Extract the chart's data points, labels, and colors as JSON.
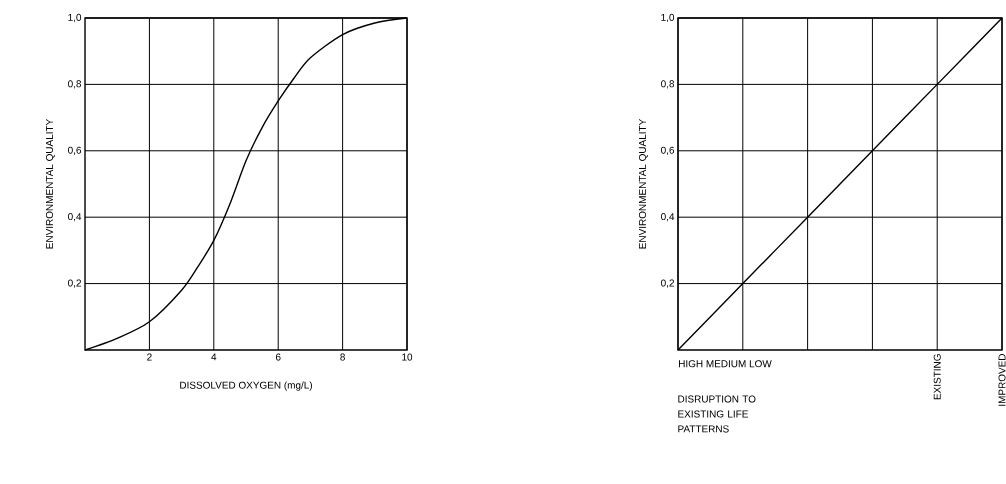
{
  "chart_data": [
    {
      "type": "line",
      "xlabel": "DISSOLVED OXYGEN (mg/L)",
      "ylabel": "ENVIRONMENTAL QUALITY",
      "color": "#000000",
      "x": [
        0,
        1,
        2,
        3,
        3.5,
        4,
        4.5,
        5,
        5.5,
        6,
        6.5,
        7,
        8,
        9,
        10
      ],
      "values": [
        0,
        0.035,
        0.085,
        0.18,
        0.25,
        0.33,
        0.44,
        0.57,
        0.67,
        0.75,
        0.82,
        0.88,
        0.95,
        0.985,
        1.0
      ],
      "xlim": [
        0,
        10
      ],
      "ylim": [
        0,
        1
      ],
      "xticks": [
        2,
        4,
        6,
        8,
        10
      ],
      "yticks": [
        {
          "value": 0.2,
          "label": "0,2"
        },
        {
          "value": 0.4,
          "label": "0,4"
        },
        {
          "value": 0.6,
          "label": "0,6"
        },
        {
          "value": 0.8,
          "label": "0,8"
        },
        {
          "value": 1.0,
          "label": "1,0"
        }
      ],
      "grid": true
    },
    {
      "type": "line",
      "xlabel": "DISRUPTION TO EXISTING LIFE PATTERNS",
      "ylabel": "ENVIRONMENTAL QUALITY",
      "color": "#000000",
      "categories": [
        null,
        null,
        null,
        null,
        "EXISTING",
        "IMPROVED"
      ],
      "values": [
        0,
        0.2,
        0.4,
        0.6,
        0.8,
        1.0
      ],
      "ylim": [
        0,
        1
      ],
      "yticks": [
        {
          "value": 0.2,
          "label": "0,2"
        },
        {
          "value": 0.4,
          "label": "0,4"
        },
        {
          "value": 0.6,
          "label": "0,6"
        },
        {
          "value": 0.8,
          "label": "0,8"
        },
        {
          "value": 1.0,
          "label": "1,0"
        }
      ],
      "grid": true,
      "annotations": [
        "HIGH MEDIUM LOW"
      ]
    }
  ]
}
